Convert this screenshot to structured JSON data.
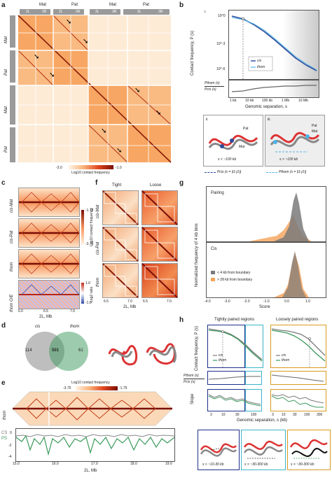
{
  "panel_labels": {
    "a": "a",
    "b": "b",
    "c": "c",
    "d": "d",
    "e": "e",
    "f": "f",
    "g": "g",
    "h": "h"
  },
  "a": {
    "top_groups": [
      "Mat",
      "Pat",
      "Mat",
      "Pat"
    ],
    "arm_labels": [
      "2L",
      "2R",
      "2L",
      "2R",
      "3L",
      "3R",
      "3L",
      "3R"
    ],
    "left_groups": [
      "Mat",
      "Pat",
      "Mat",
      "Pat"
    ],
    "colorbar_min": "-3.0",
    "colorbar_max": "-1.0",
    "colorbar_label": "Log10 contact frequency"
  },
  "b": {
    "sub_i": "i.",
    "sub_ii": "ii.",
    "sub_iii": "iii.",
    "ylabel": "Contact frequency, P (s)",
    "ratio_num": "Pthom (s)",
    "ratio_den": "Pcis (s)",
    "xticks": [
      "1 kb",
      "10 kb",
      "100 kb",
      "1 Mb",
      "10 Mb"
    ],
    "xlabel": "Genomic separation, s",
    "yticks": [
      "10^0",
      "10^-3",
      "10^-6"
    ],
    "legend": [
      "cis",
      "thom"
    ],
    "diag_ii": "s < ~100 kb",
    "diag_iii": "s > ~100 kb",
    "legend_bottom": [
      "Pcis (s = |i1-j1|)",
      "Pthom (s = |i1-j1|)"
    ],
    "pat": "Pat",
    "mat": "Mat"
  },
  "c": {
    "rows": [
      "cis-Mat",
      "cis-Pat",
      "thom",
      "thom O/E"
    ],
    "xticks": [
      "6.0",
      "6.5",
      "7.0"
    ],
    "xlabel": "2L, Mb",
    "cbar1_top": "-1.75",
    "cbar1_bot": "-3.75",
    "cbar1_label": "Log10 contact frequency",
    "cbar2_top": "1.0",
    "cbar2_bot": "-1.0",
    "cbar2_label": "Log2 ratio"
  },
  "f": {
    "cols": [
      "Tight",
      "Loose"
    ],
    "rows": [
      "cis-Mat",
      "cis-Pat",
      "thom"
    ],
    "xticks_left": [
      "6.5",
      "7.0"
    ],
    "xticks_right": [
      "6.5",
      "7.0"
    ],
    "xlabel": "2L, Mb"
  },
  "g": {
    "top_label": "Pairing",
    "bot_label": "Cis",
    "ylabel": "Normalized frequency of 4 kb bins",
    "xticks": [
      "-4.0",
      "-3.0",
      "-2.0",
      "-1.0",
      "0.0",
      "1.0"
    ],
    "xlabel": "Score",
    "legend": [
      "< 4 kb from boundary",
      "> 28 kb from boundary"
    ]
  },
  "d": {
    "left": "cis",
    "right": "thom",
    "n_left": "114",
    "n_mid": "501",
    "n_right": "61"
  },
  "e": {
    "cbar_min": "-3.75",
    "cbar_max": "-1.75",
    "cbar_label": "Log10 contact frequency",
    "row": "thom",
    "cs": "CS",
    "ps": "PS",
    "yticks": [
      "0",
      "-2",
      "-4"
    ],
    "xticks": [
      "15.0",
      "16.0",
      "17.0",
      "18.0",
      "19.0"
    ],
    "xlabel": "2L, Mb"
  },
  "h": {
    "title_left": "Tightly paired regions",
    "title_right": "Loosely paired regions",
    "ylabel": "Contact frequency, P (s)",
    "ratio_num": "Pthom (s)",
    "ratio_den": "Pcis (s)",
    "slope": "Slope",
    "xticks_left": [
      "3",
      "10",
      "30",
      "100"
    ],
    "xticks_right": [
      "3",
      "10",
      "30",
      "100",
      "300"
    ],
    "xlabel": "Genomic separation, s (kb)",
    "legend": [
      "cis",
      "thom"
    ],
    "d1": "s < ~10-30 kb",
    "d2": "s > ~30-300 kb",
    "d3": "s > ~30-300 kb"
  },
  "colors": {
    "heat": "#d94a1e",
    "light": "#fdebd6",
    "cis": "#2b4a9c",
    "thom": "#4db3e6",
    "gray": "#7a7a7a",
    "orange": "#f5a25a",
    "green": "#3a9a5b",
    "navy": "#1f2f8a",
    "teal": "#3ab5c8",
    "gold": "#d99a1f"
  }
}
